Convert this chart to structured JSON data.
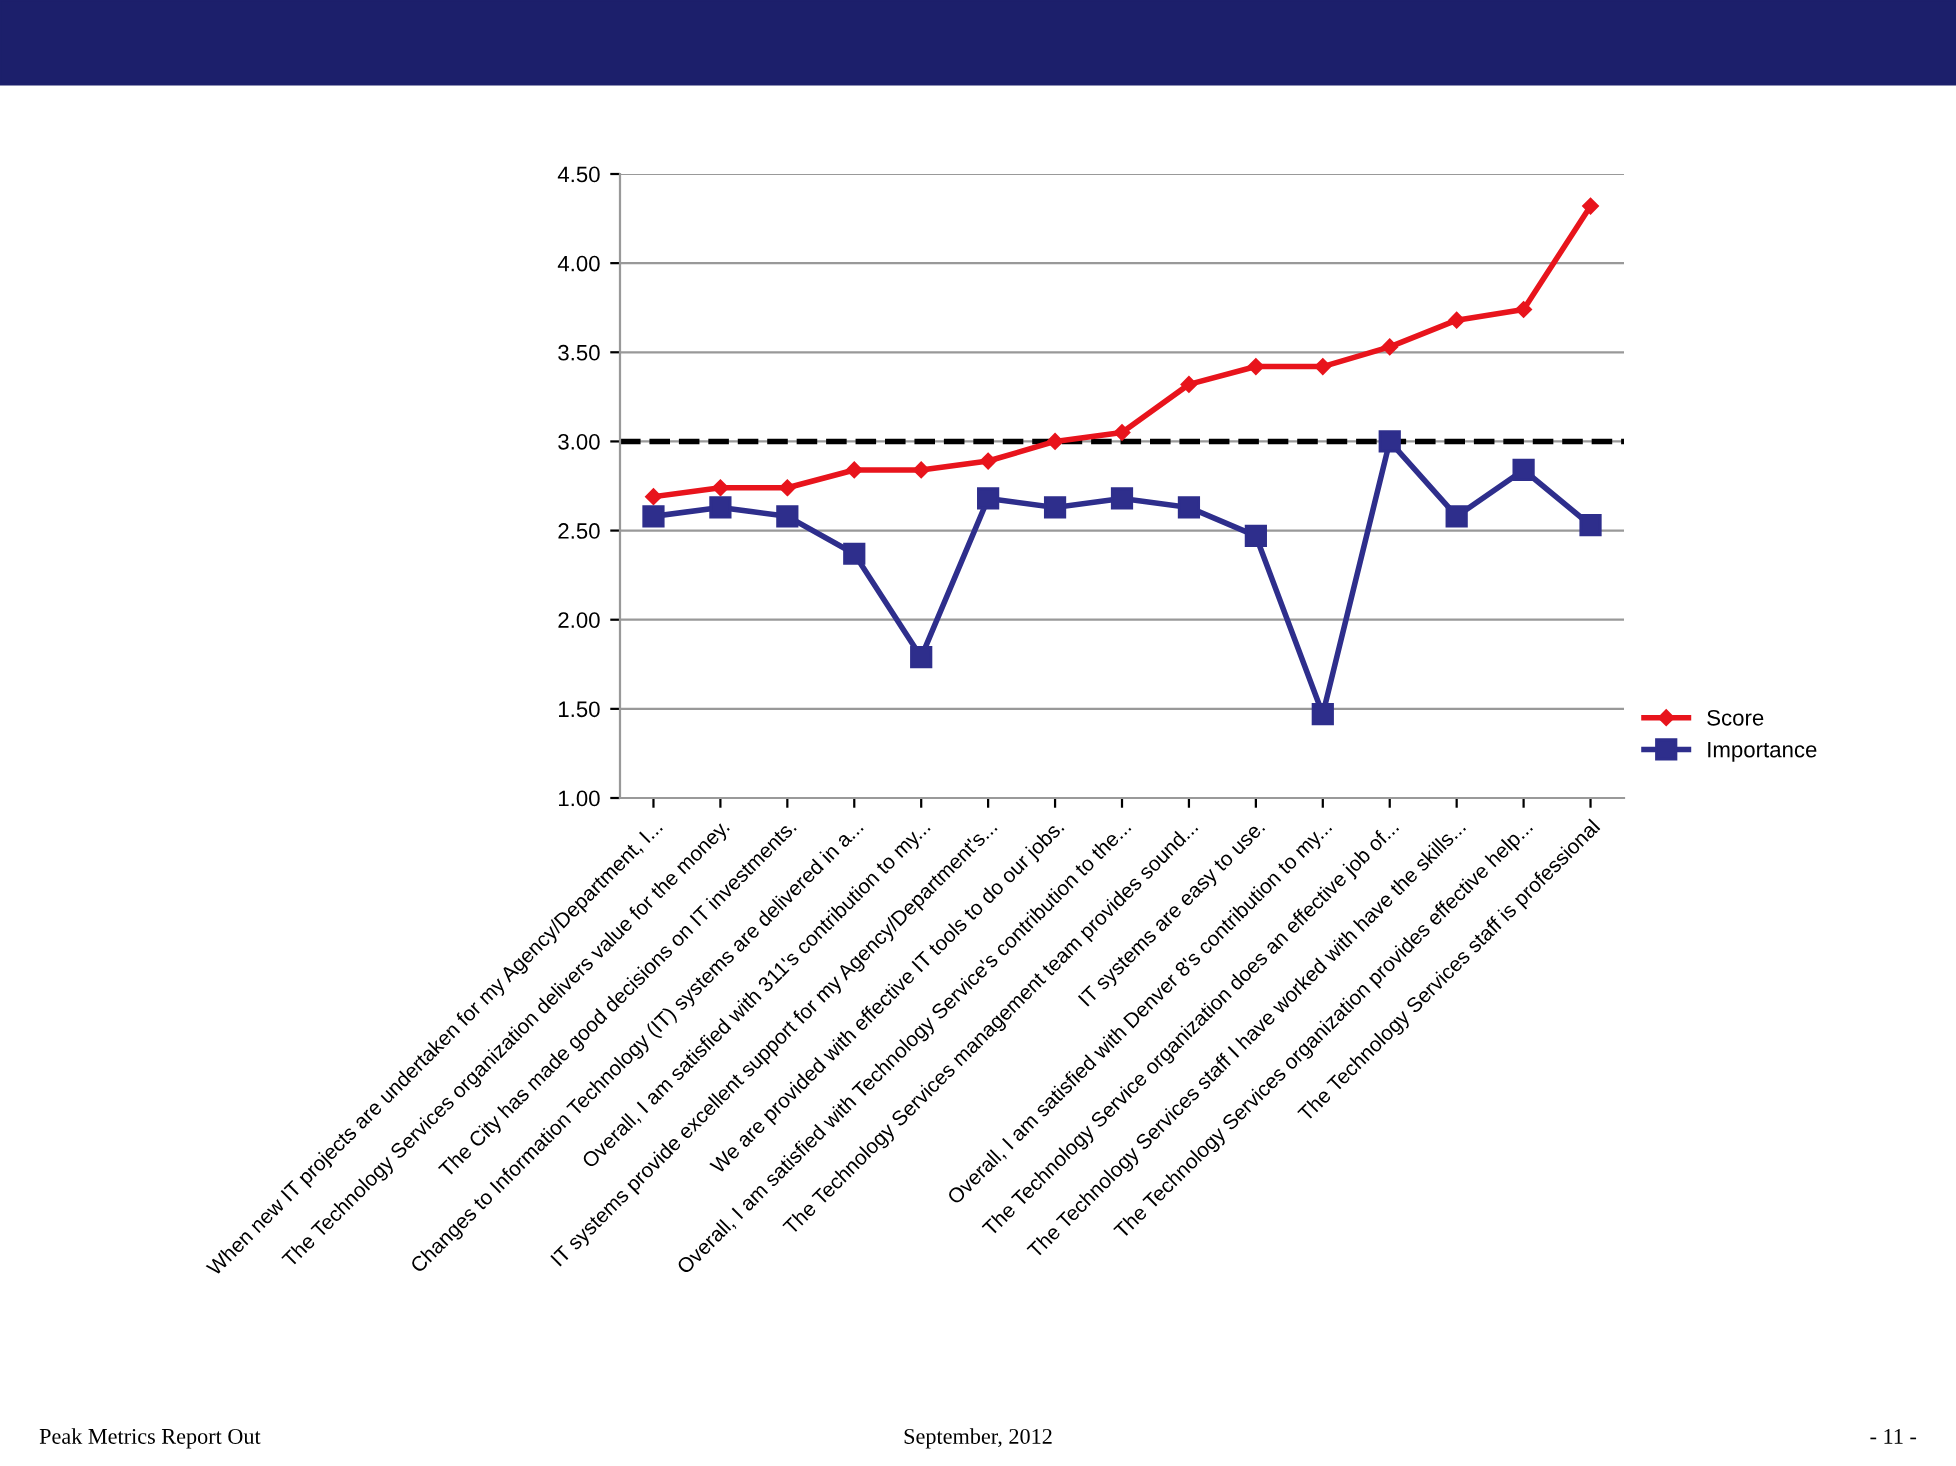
{
  "chart_data": {
    "type": "line",
    "categories": [
      "When new IT projects are undertaken for my Agency/Department, I...",
      "The Technology Services organization delivers value for the money.",
      "The City has made good decisions on IT investments.",
      "Changes to Information Technology (IT) systems are delivered in a...",
      "Overall, I am satisfied with 311's contribution to my...",
      "IT systems provide excellent support for my Agency/Department's...",
      "We are provided with effective IT tools to do our jobs.",
      "Overall, I am satisfied with Technology Service's contribution to the...",
      "The Technology Services management team provides sound...",
      "IT systems are easy to use.",
      "Overall, I am satisfied with Denver 8's contribution to my...",
      "The Technology Service organization does an effective job of...",
      "The Technology Services staff I have worked with have the skills...",
      "The Technology Services organization provides effective help...",
      "The Technology Services staff is professional"
    ],
    "series": [
      {
        "name": "Score",
        "color": "#e8141c",
        "marker": "diamond",
        "values": [
          2.69,
          2.74,
          2.74,
          2.84,
          2.84,
          2.89,
          3.0,
          3.05,
          3.32,
          3.42,
          3.42,
          3.53,
          3.68,
          3.74,
          4.32
        ]
      },
      {
        "name": "Importance",
        "color": "#2e2e8c",
        "marker": "square",
        "values": [
          2.58,
          2.63,
          2.58,
          2.37,
          1.79,
          2.68,
          2.63,
          2.68,
          2.63,
          2.47,
          1.47,
          3.0,
          2.58,
          2.84,
          2.53
        ]
      }
    ],
    "ylim": [
      1.0,
      4.5
    ],
    "yticks": [
      {
        "value": 1.0,
        "label": "1.00"
      },
      {
        "value": 1.5,
        "label": "1.50"
      },
      {
        "value": 2.0,
        "label": "2.00"
      },
      {
        "value": 2.5,
        "label": "2.50"
      },
      {
        "value": 3.0,
        "label": "3.00"
      },
      {
        "value": 3.5,
        "label": "3.50"
      },
      {
        "value": 4.0,
        "label": "4.00"
      },
      {
        "value": 4.5,
        "label": "4.50"
      }
    ],
    "ref_lines": [
      {
        "axis": "y",
        "value": 3.0,
        "color": "#000000",
        "line_style": "dashed"
      }
    ],
    "grid": "y",
    "legend": "right",
    "annotations": [
      "Peak Metrics Report Out",
      "September, 2012",
      "- 11 -"
    ]
  }
}
